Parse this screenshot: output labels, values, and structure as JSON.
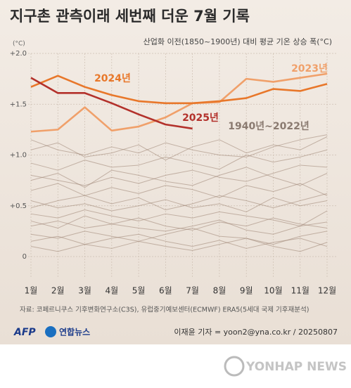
{
  "chart_data": {
    "type": "line",
    "title": "지구촌 관측이래 세번째 더운 7월 기록",
    "subtitle": "산업화 이전(1850~1900년) 대비 평균 기온 상승 폭(°C)",
    "y_axis_label": "(°C)",
    "categories": [
      "1월",
      "2월",
      "3월",
      "4월",
      "5월",
      "6월",
      "7월",
      "8월",
      "9월",
      "10월",
      "11월",
      "12월"
    ],
    "ylim": [
      0,
      2.0
    ],
    "yticks": [
      0,
      {
        "value": 0.5,
        "label": "+0.5"
      },
      {
        "value": 1.0,
        "label": "+1.0"
      },
      {
        "value": 1.5,
        "label": "+1.5"
      },
      {
        "value": 2.0,
        "label": "+2.0"
      }
    ],
    "grid": true,
    "background_series": {
      "name": "1940년~2022년",
      "color": "#9c8472",
      "lines": [
        [
          1.05,
          1.12,
          0.98,
          1.02,
          1.1,
          0.95,
          1.08,
          1.15,
          1.02,
          1.1,
          1.05,
          1.18
        ],
        [
          0.92,
          0.85,
          0.95,
          0.88,
          0.9,
          0.98,
          0.92,
          0.86,
          1.0,
          0.93,
          0.98,
          1.05
        ],
        [
          0.8,
          0.75,
          0.7,
          0.78,
          0.72,
          0.8,
          0.85,
          0.78,
          0.74,
          0.82,
          0.9,
          0.88
        ],
        [
          0.65,
          0.72,
          0.6,
          0.68,
          0.62,
          0.7,
          0.66,
          0.58,
          0.7,
          0.64,
          0.72,
          0.6
        ],
        [
          0.55,
          0.48,
          0.52,
          0.45,
          0.5,
          0.56,
          0.48,
          0.52,
          0.44,
          0.58,
          0.5,
          0.55
        ],
        [
          0.42,
          0.38,
          0.46,
          0.4,
          0.35,
          0.42,
          0.38,
          0.44,
          0.4,
          0.36,
          0.3,
          0.45
        ],
        [
          0.3,
          0.35,
          0.28,
          0.32,
          0.38,
          0.3,
          0.26,
          0.34,
          0.3,
          0.38,
          0.32,
          0.28
        ],
        [
          0.22,
          0.18,
          0.25,
          0.2,
          0.15,
          0.22,
          0.28,
          0.2,
          0.18,
          0.12,
          0.2,
          0.25
        ],
        [
          0.15,
          0.2,
          0.12,
          0.18,
          0.22,
          0.15,
          0.1,
          0.16,
          0.08,
          0.14,
          0.18,
          0.1
        ],
        [
          0.35,
          0.28,
          0.4,
          0.32,
          0.28,
          0.25,
          0.3,
          0.36,
          0.26,
          0.22,
          0.3,
          0.34
        ],
        [
          0.75,
          0.82,
          0.68,
          0.85,
          0.8,
          0.74,
          0.7,
          0.8,
          0.88,
          0.78,
          0.7,
          0.82
        ],
        [
          1.15,
          1.05,
          1.0,
          1.08,
          1.02,
          1.12,
          1.05,
          1.0,
          0.98,
          1.08,
          1.15,
          1.2
        ],
        [
          0.48,
          0.55,
          0.6,
          0.52,
          0.58,
          0.46,
          0.52,
          0.6,
          0.55,
          0.48,
          0.55,
          0.62
        ],
        [
          0.1,
          0.05,
          0.12,
          0.08,
          0.15,
          0.1,
          0.06,
          0.12,
          0.18,
          0.1,
          0.05,
          0.14
        ]
      ]
    },
    "series": [
      {
        "name": "2023년",
        "color": "#f0a06a",
        "values": [
          1.23,
          1.25,
          1.47,
          1.24,
          1.28,
          1.37,
          1.51,
          1.52,
          1.75,
          1.72,
          1.76,
          1.8
        ]
      },
      {
        "name": "2024년",
        "color": "#e8772a",
        "values": [
          1.67,
          1.78,
          1.67,
          1.59,
          1.53,
          1.51,
          1.51,
          1.53,
          1.56,
          1.65,
          1.63,
          1.7
        ]
      },
      {
        "name": "2025년",
        "color": "#b3312b",
        "values": [
          1.76,
          1.61,
          1.61,
          1.51,
          1.4,
          1.3,
          1.26,
          null,
          null,
          null,
          null,
          null
        ]
      }
    ],
    "source": "자료: 코페르니쿠스 기후변화연구소(C3S), 유럽중기예보센터(ECMWF) ERA5(5세대 국제 기후재분석)",
    "credit": "이재윤 기자 = yoon2@yna.co.kr / 20250807",
    "logos": [
      "AFP",
      "연합뉴스"
    ],
    "watermark": "YONHAP NEWS"
  }
}
